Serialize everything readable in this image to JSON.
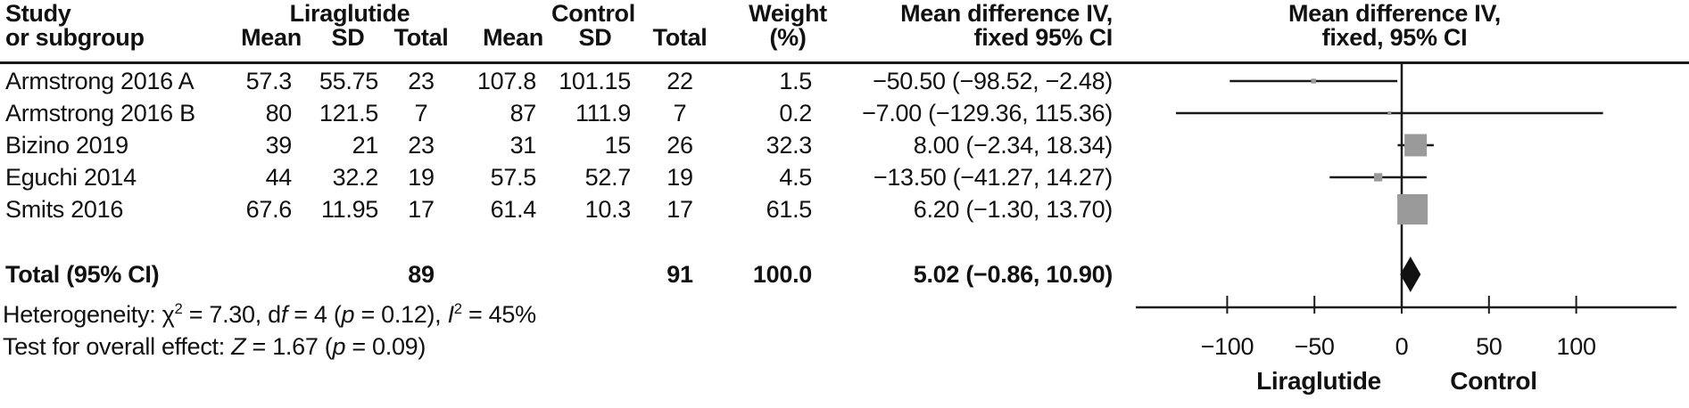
{
  "table": {
    "col1_header_line1": "Study",
    "col1_header_line2": "or subgroup",
    "group1_header": "Liraglutide",
    "group2_header": "Control",
    "sub_mean": "Mean",
    "sub_sd": "SD",
    "sub_total": "Total",
    "weight_header_line1": "Weight",
    "weight_header_line2": "(%)",
    "ci_header_line1": "Mean difference IV,",
    "ci_header_line2": "fixed 95% CI",
    "plot_header_line1": "Mean difference IV,",
    "plot_header_line2": "fixed, 95% CI",
    "rows": [
      {
        "study": "Armstrong 2016 A",
        "mean1": "57.3",
        "sd1": "55.75",
        "total1": "23",
        "mean2": "107.8",
        "sd2": "101.15",
        "total2": "22",
        "weight": "1.5",
        "ci_text": "−50.50 (−98.52, −2.48)"
      },
      {
        "study": "Armstrong 2016 B",
        "mean1": "80",
        "sd1": "121.5",
        "total1": "7",
        "mean2": "87",
        "sd2": "111.9",
        "total2": "7",
        "weight": "0.2",
        "ci_text": "−7.00 (−129.36, 115.36)"
      },
      {
        "study": "Bizino 2019",
        "mean1": "39",
        "sd1": "21",
        "total1": "23",
        "mean2": "31",
        "sd2": "15",
        "total2": "26",
        "weight": "32.3",
        "ci_text": "8.00 (−2.34, 18.34)"
      },
      {
        "study": "Eguchi 2014",
        "mean1": "44",
        "sd1": "32.2",
        "total1": "19",
        "mean2": "57.5",
        "sd2": "52.7",
        "total2": "19",
        "weight": "4.5",
        "ci_text": "−13.50 (−41.27, 14.27)"
      },
      {
        "study": "Smits 2016",
        "mean1": "67.6",
        "sd1": "11.95",
        "total1": "17",
        "mean2": "61.4",
        "sd2": "10.3",
        "total2": "17",
        "weight": "61.5",
        "ci_text": "6.20 (−1.30, 13.70)"
      }
    ],
    "total_row": {
      "label": "Total (95% CI)",
      "total1": "89",
      "total2": "91",
      "weight": "100.0",
      "ci_text": "5.02 (−0.86, 10.90)"
    }
  },
  "footer": {
    "heterogeneity_runs": [
      {
        "t": "Heterogeneity: χ"
      },
      {
        "t": "2",
        "sup": true
      },
      {
        "t": " = 7.30, d"
      },
      {
        "t": "f",
        "i": true
      },
      {
        "t": " = 4 ("
      },
      {
        "t": "p",
        "i": true
      },
      {
        "t": " = 0.12), "
      },
      {
        "t": "I",
        "i": true
      },
      {
        "t": "2",
        "sup": true
      },
      {
        "t": " = 45%"
      }
    ],
    "overall_effect_runs": [
      {
        "t": "Test for overall effect: "
      },
      {
        "t": "Z",
        "i": true
      },
      {
        "t": " = 1.67 ("
      },
      {
        "t": "p",
        "i": true
      },
      {
        "t": " = 0.09)"
      }
    ]
  },
  "chart_data": {
    "type": "forest",
    "effect_measure": "Mean difference IV, fixed, 95% CI",
    "zero_line": 0,
    "axis_ticks": [
      -100,
      -50,
      0,
      50,
      100
    ],
    "axis_tick_labels": [
      "−100",
      "−50",
      "0",
      "50",
      "100"
    ],
    "xlim": [
      -155,
      158
    ],
    "xlabel_left": "Liraglutide",
    "xlabel_right": "Control",
    "studies": [
      {
        "name": "Armstrong 2016 A",
        "mean_diff": -50.5,
        "ci_low": -98.52,
        "ci_high": -2.48,
        "weight": 1.5
      },
      {
        "name": "Armstrong 2016 B",
        "mean_diff": -7.0,
        "ci_low": -129.36,
        "ci_high": 115.36,
        "weight": 0.2
      },
      {
        "name": "Bizino 2019",
        "mean_diff": 8.0,
        "ci_low": -2.34,
        "ci_high": 18.34,
        "weight": 32.3
      },
      {
        "name": "Eguchi 2014",
        "mean_diff": -13.5,
        "ci_low": -41.27,
        "ci_high": 14.27,
        "weight": 4.5
      },
      {
        "name": "Smits 2016",
        "mean_diff": 6.2,
        "ci_low": -1.3,
        "ci_high": 13.7,
        "weight": 61.5
      }
    ],
    "total": {
      "name": "Total (95% CI)",
      "mean_diff": 5.02,
      "ci_low": -0.86,
      "ci_high": 10.9,
      "weight": 100.0
    },
    "heterogeneity": {
      "chi2": 7.3,
      "df": 4,
      "p": 0.12,
      "i2_pct": 45
    },
    "overall_effect": {
      "z": 1.67,
      "p": 0.09
    },
    "marker_color": "#9a9a9a",
    "line_color": "#1a1a1a"
  }
}
